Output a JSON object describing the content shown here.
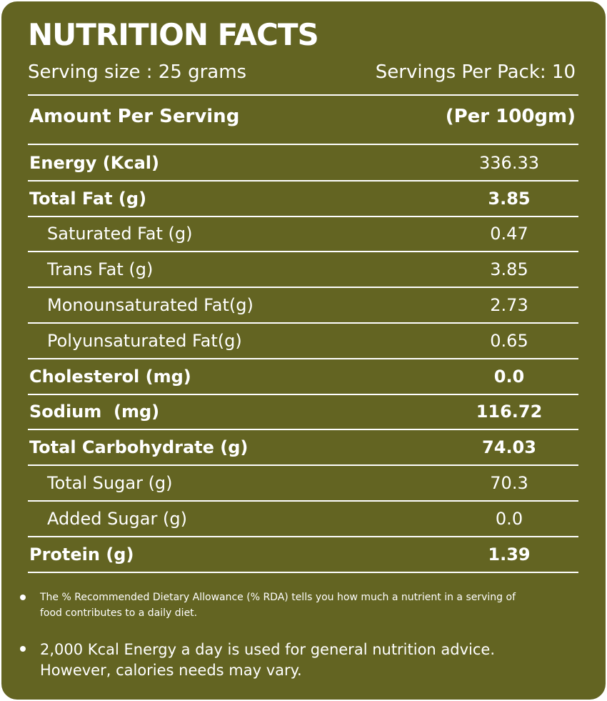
{
  "panel": {
    "title": "NUTRITION FACTS",
    "serving_size": "Serving size : 25 grams",
    "servings_per_pack": "Servings Per Pack: 10",
    "header_left": "Amount Per Serving",
    "header_right": "(Per 100gm)"
  },
  "rows": [
    {
      "label": "Energy (Kcal)",
      "value": "336.33"
    },
    {
      "label": "Total Fat (g)",
      "value": "3.85"
    },
    {
      "label": "Saturated Fat (g)",
      "value": "0.47"
    },
    {
      "label": "Trans Fat (g)",
      "value": "3.85"
    },
    {
      "label": "Monounsaturated Fat(g)",
      "value": "2.73"
    },
    {
      "label": "Polyunsaturated Fat(g)",
      "value": "0.65"
    },
    {
      "label": "Cholesterol (mg)",
      "value": "0.0"
    },
    {
      "label": "Sodium  (mg)",
      "value": "116.72"
    },
    {
      "label": "Total Carbohydrate (g)",
      "value": "74.03"
    },
    {
      "label": "Total Sugar (g)",
      "value": "70.3"
    },
    {
      "label": "Added Sugar (g)",
      "value": "0.0"
    },
    {
      "label": "Protein (g)",
      "value": "1.39"
    }
  ],
  "notes": {
    "note1_line1": "The % Recommended Dietary Allowance (% RDA) tells you how much a nutrient in a serving of",
    "note1_line2": "food contributes to a daily diet.",
    "note2_line1": "2,000 Kcal Energy a day is used for general nutrition advice.",
    "note2_line2": "However, calories needs may vary."
  },
  "colors": {
    "background": "#636422",
    "text": "#ffffff"
  }
}
